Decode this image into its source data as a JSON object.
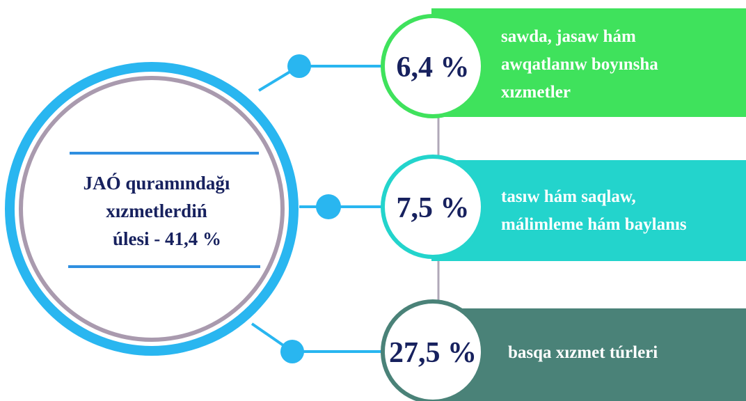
{
  "center": {
    "lines": [
      "JAÓ quramındağı",
      "xızmetlerdiń",
      "úlesi - 41,4 %"
    ]
  },
  "items": [
    {
      "value": "6,4 %",
      "lines": [
        "sawda, jasaw hám",
        "awqatlanıw boyınsha",
        "xızmetler"
      ]
    },
    {
      "value": "7,5 %",
      "lines": [
        "tasıw hám saqlaw,",
        "málimleme hám baylanıs"
      ]
    },
    {
      "value": "27,5 %",
      "lines": [
        "basqa xızmet túrleri"
      ]
    }
  ]
}
